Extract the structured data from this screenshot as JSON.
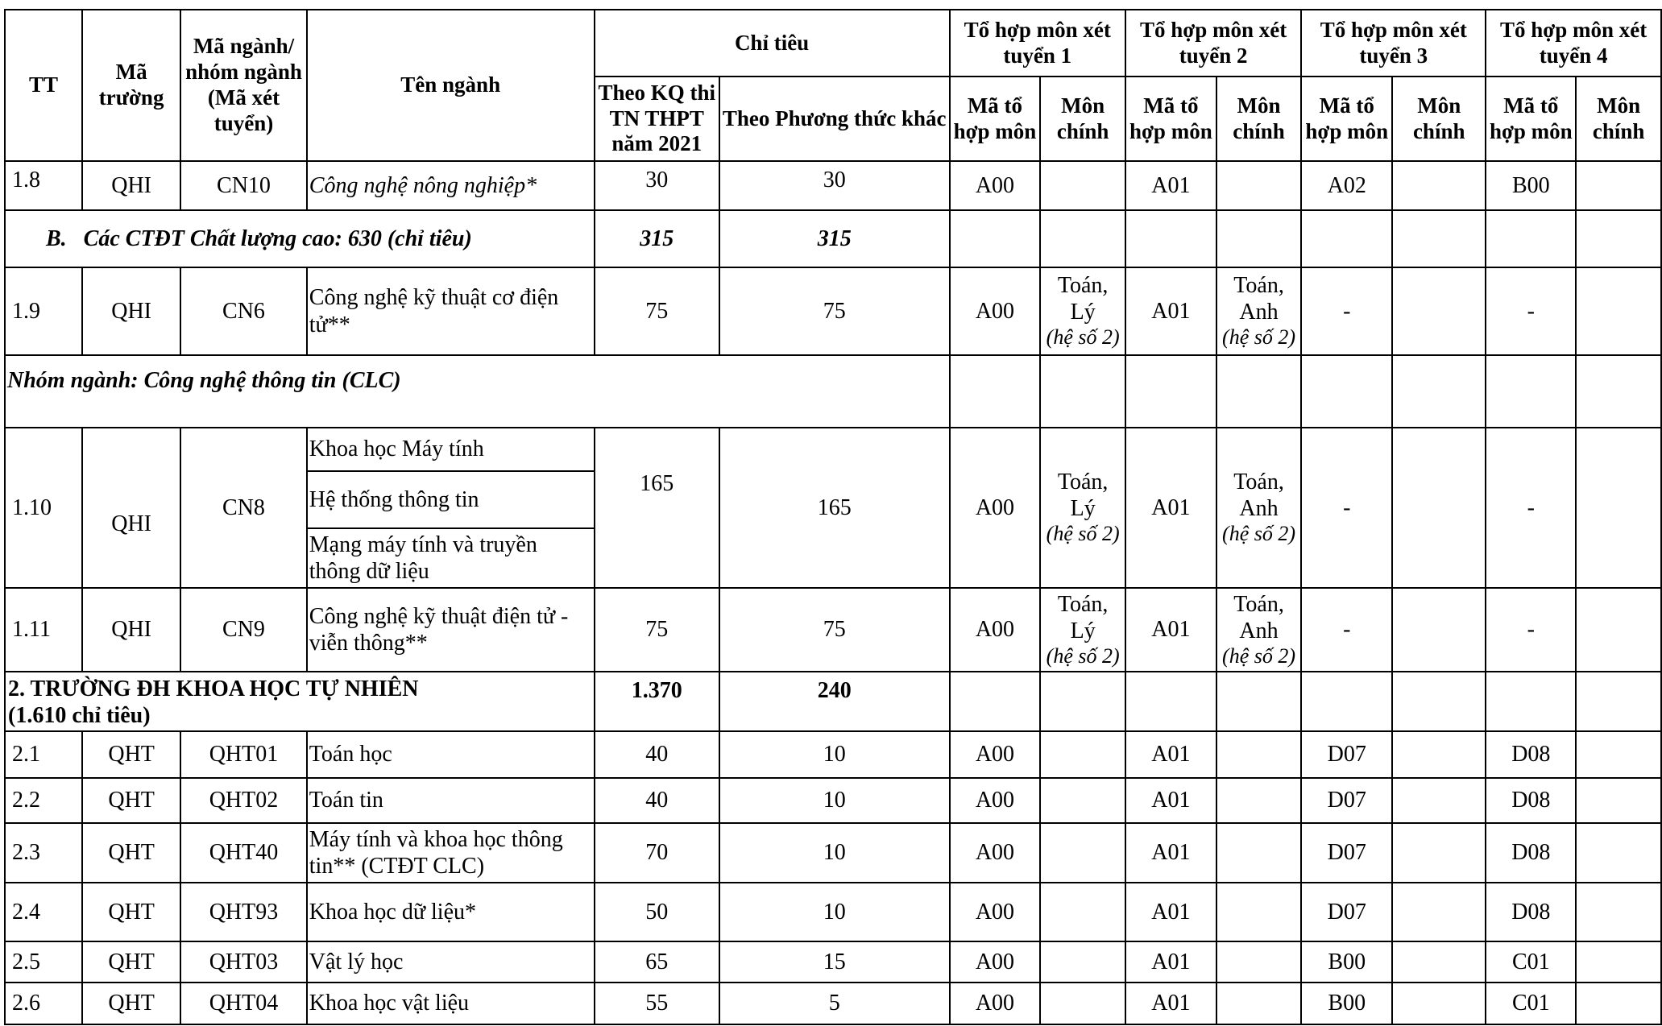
{
  "header": {
    "tt": "TT",
    "ma_truong": "Mã trường",
    "ma_nganh": "Mã ngành/ nhóm ngành (Mã xét tuyển)",
    "ten_nganh": "Tên ngành",
    "chi_tieu": "Chỉ tiêu",
    "theo_kq": "Theo KQ thi TN THPT năm 2021",
    "theo_pt": "Theo Phương thức khác",
    "to_hop": [
      "Tổ hợp môn xét tuyển 1",
      "Tổ hợp môn xét tuyển 2",
      "Tổ hợp môn xét tuyển 3",
      "Tổ hợp môn xét tuyển 4"
    ],
    "ma_to_hop": "Mã tổ hợp môn",
    "mon_chinh": "Môn chính"
  },
  "rows": [
    {
      "type": "row",
      "tt": "1.8",
      "truong": "QHI",
      "ma": "CN10",
      "names": [
        "Công nghệ nông nghiệp*"
      ],
      "name_italic": true,
      "kq": "30",
      "pt": "30",
      "combos": [
        {
          "code": "A00",
          "main": "",
          "coef": ""
        },
        {
          "code": "A01",
          "main": "",
          "coef": ""
        },
        {
          "code": "A02",
          "main": "",
          "coef": ""
        },
        {
          "code": "B00",
          "main": "",
          "coef": ""
        }
      ]
    },
    {
      "type": "section",
      "label": "B.   Các CTĐT Chất lượng cao: 630 (chỉ tiêu)",
      "style": "bold-italic",
      "kq": "315",
      "pt": "315"
    },
    {
      "type": "row",
      "tt": "1.9",
      "truong": "QHI",
      "ma": "CN6",
      "names": [
        "Công nghệ kỹ thuật cơ điện tử**"
      ],
      "kq": "75",
      "pt": "75",
      "combos": [
        {
          "code": "A00",
          "main": "Toán,\nLý",
          "coef": "(hệ số 2)"
        },
        {
          "code": "A01",
          "main": "Toán,\nAnh",
          "coef": "(hệ số 2)"
        },
        {
          "code": "-",
          "main": "",
          "coef": ""
        },
        {
          "code": "-",
          "main": "",
          "coef": ""
        }
      ]
    },
    {
      "type": "group",
      "label": "Nhóm ngành: Công nghệ thông tin (CLC)"
    },
    {
      "type": "row",
      "tt": "1.10",
      "truong": "QHI",
      "ma": "CN8",
      "names": [
        "Khoa học Máy tính",
        "Hệ thống thông tin",
        "Mạng máy tính và truyền thông dữ liệu"
      ],
      "kq": "165",
      "pt": "165",
      "combos": [
        {
          "code": "A00",
          "main": "Toán,\nLý",
          "coef": "(hệ số 2)"
        },
        {
          "code": "A01",
          "main": "Toán,\nAnh",
          "coef": "(hệ số 2)"
        },
        {
          "code": "-",
          "main": "",
          "coef": ""
        },
        {
          "code": "-",
          "main": "",
          "coef": ""
        }
      ]
    },
    {
      "type": "row",
      "tt": "1.11",
      "truong": "QHI",
      "ma": "CN9",
      "names": [
        "Công nghệ kỹ thuật điện tử - viễn thông**"
      ],
      "kq": "75",
      "pt": "75",
      "combos": [
        {
          "code": "A00",
          "main": "Toán,\nLý",
          "coef": "(hệ số 2)"
        },
        {
          "code": "A01",
          "main": "Toán,\nAnh",
          "coef": "(hệ số 2)"
        },
        {
          "code": "-",
          "main": "",
          "coef": ""
        },
        {
          "code": "-",
          "main": "",
          "coef": ""
        }
      ]
    },
    {
      "type": "section",
      "label": "2. TRƯỜNG ĐH KHOA HỌC TỰ NHIÊN (1.610 chỉ tiêu)",
      "style": "bold",
      "kq": "1.370",
      "pt": "240"
    },
    {
      "type": "row",
      "tt": "2.1",
      "truong": "QHT",
      "ma": "QHT01",
      "names": [
        "Toán học"
      ],
      "kq": "40",
      "pt": "10",
      "combos": [
        {
          "code": "A00",
          "main": "",
          "coef": ""
        },
        {
          "code": "A01",
          "main": "",
          "coef": ""
        },
        {
          "code": "D07",
          "main": "",
          "coef": ""
        },
        {
          "code": "D08",
          "main": "",
          "coef": ""
        }
      ]
    },
    {
      "type": "row",
      "tt": "2.2",
      "truong": "QHT",
      "ma": "QHT02",
      "names": [
        "Toán tin"
      ],
      "kq": "40",
      "pt": "10",
      "combos": [
        {
          "code": "A00",
          "main": "",
          "coef": ""
        },
        {
          "code": "A01",
          "main": "",
          "coef": ""
        },
        {
          "code": "D07",
          "main": "",
          "coef": ""
        },
        {
          "code": "D08",
          "main": "",
          "coef": ""
        }
      ]
    },
    {
      "type": "row",
      "tt": "2.3",
      "truong": "QHT",
      "ma": "QHT40",
      "names": [
        "Máy tính và khoa học thông tin** (CTĐT CLC)"
      ],
      "kq": "70",
      "pt": "10",
      "combos": [
        {
          "code": "A00",
          "main": "",
          "coef": ""
        },
        {
          "code": "A01",
          "main": "",
          "coef": ""
        },
        {
          "code": "D07",
          "main": "",
          "coef": ""
        },
        {
          "code": "D08",
          "main": "",
          "coef": ""
        }
      ]
    },
    {
      "type": "row",
      "tt": "2.4",
      "truong": "QHT",
      "ma": "QHT93",
      "names": [
        "Khoa học dữ liệu*"
      ],
      "kq": "50",
      "pt": "10",
      "combos": [
        {
          "code": "A00",
          "main": "",
          "coef": ""
        },
        {
          "code": "A01",
          "main": "",
          "coef": ""
        },
        {
          "code": "D07",
          "main": "",
          "coef": ""
        },
        {
          "code": "D08",
          "main": "",
          "coef": ""
        }
      ]
    },
    {
      "type": "row",
      "tt": "2.5",
      "truong": "QHT",
      "ma": "QHT03",
      "names": [
        "Vật lý học"
      ],
      "kq": "65",
      "pt": "15",
      "combos": [
        {
          "code": "A00",
          "main": "",
          "coef": ""
        },
        {
          "code": "A01",
          "main": "",
          "coef": ""
        },
        {
          "code": "B00",
          "main": "",
          "coef": ""
        },
        {
          "code": "C01",
          "main": "",
          "coef": ""
        }
      ]
    },
    {
      "type": "row",
      "tt": "2.6",
      "truong": "QHT",
      "ma": "QHT04",
      "names": [
        "Khoa học vật liệu"
      ],
      "kq": "55",
      "pt": "5",
      "combos": [
        {
          "code": "A00",
          "main": "",
          "coef": ""
        },
        {
          "code": "A01",
          "main": "",
          "coef": ""
        },
        {
          "code": "B00",
          "main": "",
          "coef": ""
        },
        {
          "code": "C01",
          "main": "",
          "coef": ""
        }
      ]
    }
  ]
}
